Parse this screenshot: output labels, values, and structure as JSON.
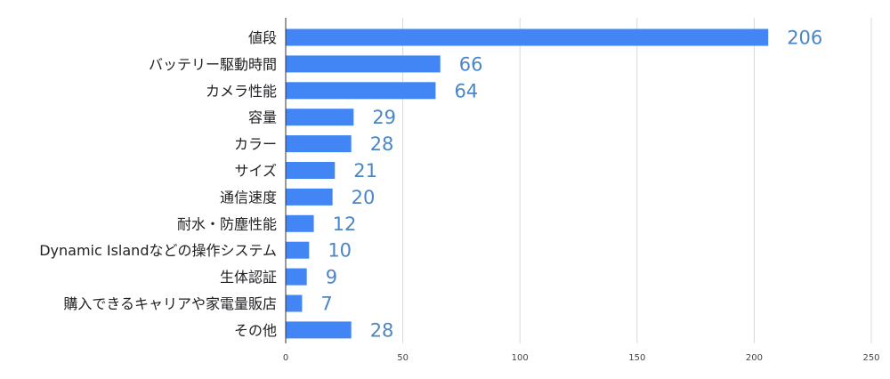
{
  "chart_data": {
    "type": "bar",
    "orientation": "horizontal",
    "categories": [
      "値段",
      "バッテリー駆動時間",
      "カメラ性能",
      "容量",
      "カラー",
      "サイズ",
      "通信速度",
      "耐水・防塵性能",
      "Dynamic Islandなどの操作システム",
      "生体認証",
      "購入できるキャリアや家電量販店",
      "その他"
    ],
    "values": [
      206,
      66,
      64,
      29,
      28,
      21,
      20,
      12,
      10,
      9,
      7,
      28
    ],
    "xlim": [
      0,
      250
    ],
    "xticks": [
      0,
      50,
      100,
      150,
      200,
      250
    ],
    "grid": true,
    "bar_color": "#4285f4",
    "value_label_color": "#4a86c8"
  }
}
